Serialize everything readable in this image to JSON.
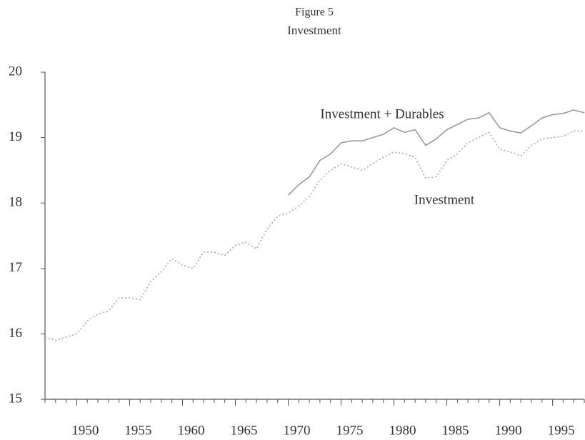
{
  "chart_data": {
    "type": "line",
    "title": "Figure 5",
    "subtitle": "Investment",
    "x": [
      1947,
      1948,
      1949,
      1950,
      1951,
      1952,
      1953,
      1954,
      1955,
      1956,
      1957,
      1958,
      1959,
      1960,
      1961,
      1962,
      1963,
      1964,
      1965,
      1966,
      1967,
      1968,
      1969,
      1970,
      1971,
      1972,
      1973,
      1974,
      1975,
      1976,
      1977,
      1978,
      1979,
      1980,
      1981,
      1982,
      1983,
      1984,
      1985,
      1986,
      1987,
      1988,
      1989,
      1990,
      1991,
      1992,
      1993,
      1994,
      1995,
      1996,
      1997,
      1998
    ],
    "series": [
      {
        "name": "Investment + Durables",
        "color": "#9a9a9a",
        "dash": "solid",
        "values": [
          null,
          null,
          null,
          null,
          null,
          null,
          null,
          null,
          null,
          null,
          null,
          null,
          null,
          null,
          null,
          null,
          null,
          null,
          null,
          null,
          null,
          null,
          null,
          18.12,
          18.28,
          18.4,
          18.65,
          18.75,
          18.92,
          18.95,
          18.95,
          19.0,
          19.05,
          19.15,
          19.08,
          19.12,
          18.88,
          18.98,
          19.12,
          19.2,
          19.28,
          19.3,
          19.38,
          19.15,
          19.1,
          19.07,
          19.18,
          19.3,
          19.35,
          19.37,
          19.42,
          19.38
        ]
      },
      {
        "name": "Investment",
        "color": "#a8a8a8",
        "dash": "dotted",
        "values": [
          15.95,
          15.9,
          15.95,
          16.0,
          16.2,
          16.3,
          16.35,
          16.55,
          16.55,
          16.52,
          16.8,
          16.95,
          17.15,
          17.05,
          17.0,
          17.25,
          17.25,
          17.2,
          17.35,
          17.4,
          17.3,
          17.6,
          17.8,
          17.85,
          17.95,
          18.1,
          18.35,
          18.5,
          18.6,
          18.55,
          18.5,
          18.6,
          18.7,
          18.78,
          18.75,
          18.7,
          18.38,
          18.4,
          18.65,
          18.75,
          18.92,
          19.0,
          19.08,
          18.82,
          18.78,
          18.72,
          18.88,
          18.98,
          19.0,
          19.02,
          19.1,
          19.1
        ]
      }
    ],
    "xlim": [
      1947,
      1998
    ],
    "xticks": [
      1950,
      1955,
      1960,
      1965,
      1970,
      1975,
      1980,
      1985,
      1990,
      1995
    ],
    "ylim": [
      15,
      20
    ],
    "yticks": [
      15,
      16,
      17,
      18,
      19,
      20
    ]
  }
}
